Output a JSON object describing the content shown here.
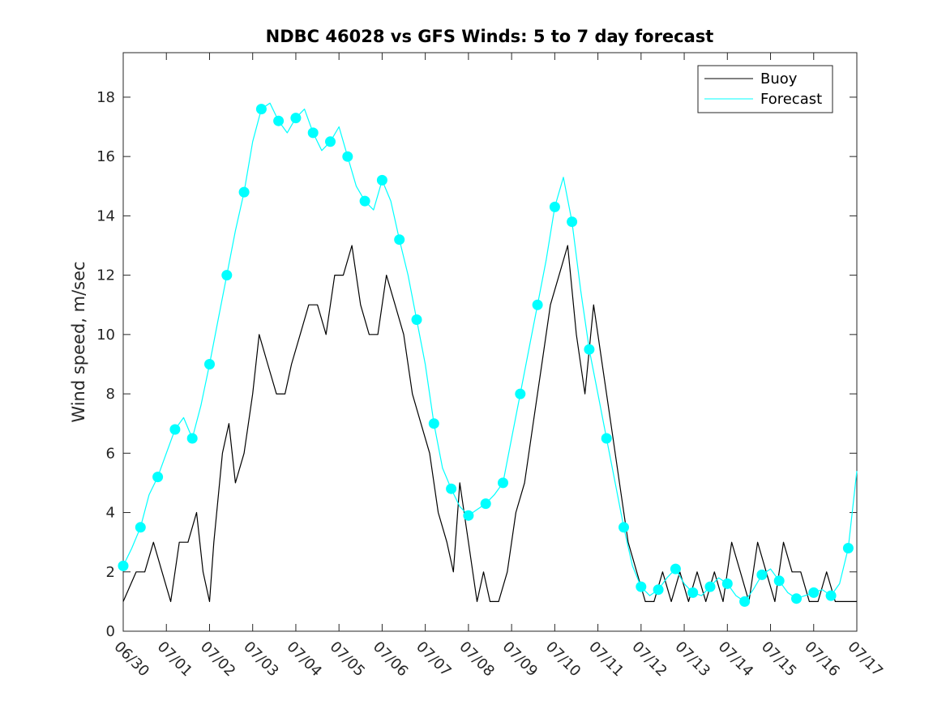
{
  "chart_data": {
    "type": "line",
    "title": "NDBC 46028 vs GFS Winds: 5 to 7 day forecast",
    "xlabel": "",
    "ylabel": "Wind speed, m/sec",
    "x_tick_labels": [
      "06/30",
      "07/01",
      "07/02",
      "07/03",
      "07/04",
      "07/05",
      "07/06",
      "07/07",
      "07/08",
      "07/09",
      "07/10",
      "07/11",
      "07/12",
      "07/13",
      "07/14",
      "07/15",
      "07/16",
      "07/17"
    ],
    "y_tick_labels": [
      "0",
      "2",
      "4",
      "6",
      "8",
      "10",
      "12",
      "14",
      "16",
      "18"
    ],
    "xlim": [
      0,
      17
    ],
    "ylim": [
      0,
      19.5
    ],
    "legend_position": "top-right",
    "colors": {
      "buoy": "#000000",
      "forecast": "#00FFFF"
    },
    "series": [
      {
        "name": "Buoy",
        "style": "line",
        "color": "#000000",
        "x": [
          0.0,
          0.3,
          0.5,
          0.7,
          0.9,
          1.1,
          1.3,
          1.5,
          1.7,
          1.85,
          2.0,
          2.1,
          2.3,
          2.45,
          2.6,
          2.8,
          3.0,
          3.15,
          3.35,
          3.55,
          3.75,
          3.9,
          4.1,
          4.3,
          4.5,
          4.7,
          4.9,
          5.1,
          5.3,
          5.5,
          5.7,
          5.9,
          6.1,
          6.3,
          6.5,
          6.7,
          6.9,
          7.1,
          7.3,
          7.5,
          7.65,
          7.8,
          8.0,
          8.2,
          8.35,
          8.5,
          8.7,
          8.9,
          9.1,
          9.3,
          9.5,
          9.7,
          9.9,
          10.1,
          10.3,
          10.5,
          10.7,
          10.9,
          11.1,
          11.3,
          11.5,
          11.7,
          11.9,
          12.1,
          12.3,
          12.5,
          12.7,
          12.9,
          13.1,
          13.3,
          13.5,
          13.7,
          13.9,
          14.1,
          14.3,
          14.5,
          14.7,
          14.9,
          15.1,
          15.3,
          15.5,
          15.7,
          15.9,
          16.1,
          16.3,
          16.5,
          16.7,
          16.9,
          17.0
        ],
        "y": [
          1,
          2,
          2,
          3,
          2,
          1,
          3,
          3,
          4,
          2,
          1,
          3,
          6,
          7,
          5,
          6,
          8,
          10,
          9,
          8,
          8,
          9,
          10,
          11,
          11,
          10,
          12,
          12,
          13,
          11,
          10,
          10,
          12,
          11,
          10,
          8,
          7,
          6,
          4,
          3,
          2,
          5,
          3,
          1,
          2,
          1,
          1,
          2,
          4,
          5,
          7,
          9,
          11,
          12,
          13,
          10,
          8,
          11,
          9,
          7,
          5,
          3,
          2,
          1,
          1,
          2,
          1,
          2,
          1,
          2,
          1,
          2,
          1,
          3,
          2,
          1,
          3,
          2,
          1,
          3,
          2,
          2,
          1,
          1,
          2,
          1,
          1,
          1,
          1
        ]
      },
      {
        "name": "Forecast",
        "style": "line",
        "color": "#00FFFF",
        "x": [
          0.0,
          0.2,
          0.4,
          0.6,
          0.8,
          1.0,
          1.2,
          1.4,
          1.6,
          1.8,
          2.0,
          2.2,
          2.4,
          2.6,
          2.8,
          3.0,
          3.2,
          3.4,
          3.6,
          3.8,
          4.0,
          4.2,
          4.4,
          4.6,
          4.8,
          5.0,
          5.2,
          5.4,
          5.6,
          5.8,
          6.0,
          6.2,
          6.4,
          6.6,
          6.8,
          7.0,
          7.2,
          7.4,
          7.6,
          7.8,
          8.0,
          8.2,
          8.4,
          8.6,
          8.8,
          9.0,
          9.2,
          9.4,
          9.6,
          9.8,
          10.0,
          10.2,
          10.4,
          10.6,
          10.8,
          11.0,
          11.2,
          11.4,
          11.6,
          11.8,
          12.0,
          12.2,
          12.4,
          12.6,
          12.8,
          13.0,
          13.2,
          13.4,
          13.6,
          13.8,
          14.0,
          14.2,
          14.4,
          14.6,
          14.8,
          15.0,
          15.2,
          15.4,
          15.6,
          15.8,
          16.0,
          16.2,
          16.4,
          16.6,
          16.8,
          17.0
        ],
        "y": [
          2.2,
          2.8,
          3.5,
          4.6,
          5.2,
          6.0,
          6.8,
          7.2,
          6.5,
          7.6,
          9.0,
          10.5,
          12.0,
          13.5,
          14.8,
          16.5,
          17.6,
          17.8,
          17.2,
          16.8,
          17.3,
          17.6,
          16.8,
          16.2,
          16.5,
          17.0,
          16.0,
          15.0,
          14.5,
          14.2,
          15.2,
          14.5,
          13.2,
          12.0,
          10.5,
          9.0,
          7.0,
          5.5,
          4.8,
          4.2,
          3.9,
          4.1,
          4.3,
          4.6,
          5.0,
          6.5,
          8.0,
          9.5,
          11.0,
          12.5,
          14.3,
          15.3,
          13.8,
          11.5,
          9.5,
          8.0,
          6.5,
          5.0,
          3.5,
          2.2,
          1.5,
          1.2,
          1.4,
          1.8,
          2.1,
          1.6,
          1.3,
          1.2,
          1.5,
          1.8,
          1.6,
          1.2,
          1.0,
          1.4,
          1.9,
          2.1,
          1.7,
          1.3,
          1.1,
          1.2,
          1.3,
          1.4,
          1.2,
          1.6,
          2.8,
          5.4
        ]
      }
    ]
  }
}
